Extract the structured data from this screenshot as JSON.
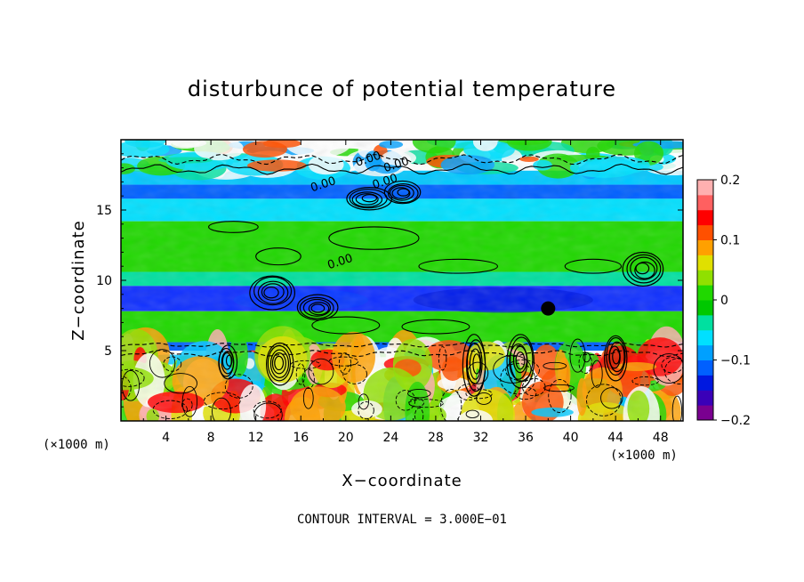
{
  "chart_data": {
    "type": "heatmap",
    "title": "disturbunce of potential temperature",
    "xlabel": "X−coordinate",
    "ylabel": "Z−coordinate",
    "x_unit": "(×1000 m)",
    "z_unit": "(×1000 m)",
    "xlim": [
      0,
      50
    ],
    "ylim": [
      0,
      20
    ],
    "x_ticks": [
      "4",
      "8",
      "12",
      "16",
      "20",
      "24",
      "28",
      "32",
      "36",
      "40",
      "44",
      "48"
    ],
    "y_ticks": [
      "5",
      "10",
      "15"
    ],
    "colorbar": {
      "range": [
        -0.2,
        0.2
      ],
      "tick_labels": [
        "0.2",
        "0.1",
        "0",
        "−0.1",
        "−0.2"
      ],
      "colors": [
        "#7a0090",
        "#3a00b8",
        "#0018e0",
        "#0060ff",
        "#00a0ff",
        "#00e0ff",
        "#00e0a0",
        "#00c800",
        "#20d800",
        "#90e000",
        "#e0e000",
        "#ffa000",
        "#ff5000",
        "#ff0000",
        "#ff6060",
        "#ffb0b0"
      ]
    },
    "bands": [
      {
        "z_top": 20.0,
        "z_bottom": 17.8,
        "level": "mixed",
        "fill": "#ffffff"
      },
      {
        "z_top": 17.8,
        "z_bottom": 16.8,
        "level": -0.09,
        "fill": "#00c8ff"
      },
      {
        "z_top": 16.8,
        "z_bottom": 15.8,
        "level": -0.12,
        "fill": "#0060ff"
      },
      {
        "z_top": 15.8,
        "z_bottom": 14.2,
        "level": -0.06,
        "fill": "#00e0ff"
      },
      {
        "z_top": 14.2,
        "z_bottom": 10.6,
        "level": 0.0,
        "fill": "#20d800"
      },
      {
        "z_top": 10.6,
        "z_bottom": 9.6,
        "level": -0.04,
        "fill": "#00e0a0"
      },
      {
        "z_top": 9.6,
        "z_bottom": 7.8,
        "level": -0.14,
        "fill": "#1030ff"
      },
      {
        "z_top": 7.8,
        "z_bottom": 5.6,
        "level": 0.0,
        "fill": "#20d800"
      },
      {
        "z_top": 5.6,
        "z_bottom": 5.0,
        "level": -0.12,
        "fill": "#0060ff"
      },
      {
        "z_top": 5.0,
        "z_bottom": 0.0,
        "level": "mixed",
        "fill": "#ffffff"
      }
    ],
    "contour_labels": [
      "0.00",
      "0.00",
      "0.00",
      "0.00",
      "0.00"
    ],
    "contour_interval": "CONTOUR INTERVAL = 3.000E−01"
  }
}
